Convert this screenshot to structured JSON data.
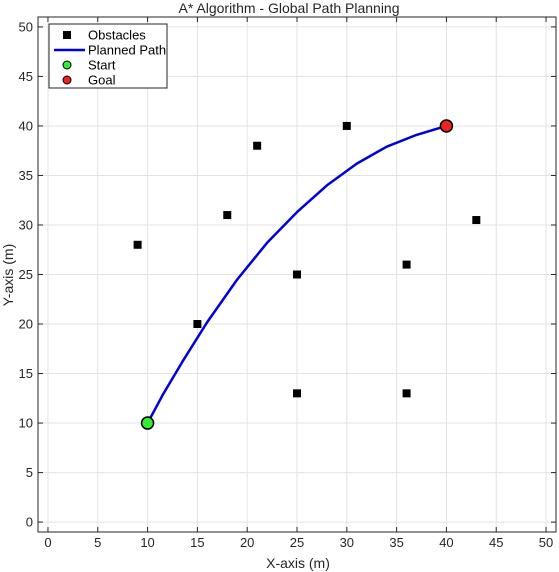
{
  "chart_data": {
    "type": "scatter",
    "title": "A* Algorithm - Global Path Planning",
    "xlabel": "X-axis (m)",
    "ylabel": "Y-axis (m)",
    "xlim": [
      -1,
      51
    ],
    "ylim": [
      -1,
      51
    ],
    "xticks": [
      0,
      5,
      10,
      15,
      20,
      25,
      30,
      35,
      40,
      45,
      50
    ],
    "yticks": [
      0,
      5,
      10,
      15,
      20,
      25,
      30,
      35,
      40,
      45,
      50
    ],
    "grid": true,
    "legend_position": "top-left",
    "series": [
      {
        "name": "Obstacles",
        "kind": "scatter",
        "marker": "square",
        "color": "#000000",
        "points": [
          {
            "x": 9,
            "y": 28
          },
          {
            "x": 15,
            "y": 20
          },
          {
            "x": 18,
            "y": 31
          },
          {
            "x": 21,
            "y": 38
          },
          {
            "x": 25,
            "y": 25
          },
          {
            "x": 25,
            "y": 13
          },
          {
            "x": 30,
            "y": 40
          },
          {
            "x": 36,
            "y": 26
          },
          {
            "x": 36,
            "y": 13
          },
          {
            "x": 43,
            "y": 30.5
          }
        ]
      },
      {
        "name": "Planned Path",
        "kind": "line",
        "color": "#0000dd",
        "points": [
          {
            "x": 10,
            "y": 10
          },
          {
            "x": 11.5,
            "y": 12.8
          },
          {
            "x": 13.5,
            "y": 16.2
          },
          {
            "x": 16,
            "y": 20.2
          },
          {
            "x": 19,
            "y": 24.5
          },
          {
            "x": 22,
            "y": 28.2
          },
          {
            "x": 25,
            "y": 31.3
          },
          {
            "x": 28,
            "y": 34.0
          },
          {
            "x": 31,
            "y": 36.2
          },
          {
            "x": 34,
            "y": 37.9
          },
          {
            "x": 37,
            "y": 39.1
          },
          {
            "x": 40,
            "y": 40
          }
        ]
      },
      {
        "name": "Start",
        "kind": "scatter",
        "marker": "circle",
        "color": "#33ee33",
        "points": [
          {
            "x": 10,
            "y": 10
          }
        ]
      },
      {
        "name": "Goal",
        "kind": "scatter",
        "marker": "circle",
        "color": "#ee2222",
        "points": [
          {
            "x": 40,
            "y": 40
          }
        ]
      }
    ]
  }
}
